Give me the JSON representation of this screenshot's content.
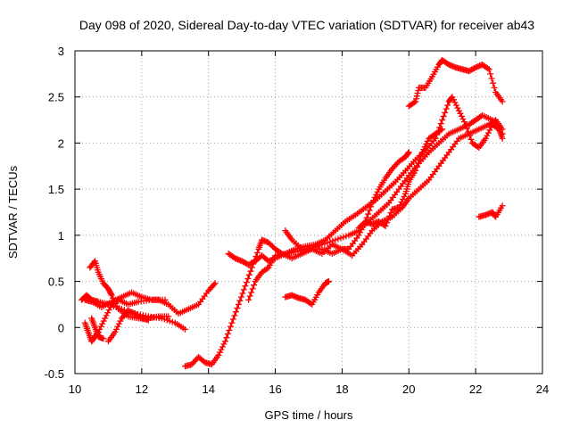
{
  "chart_data": {
    "type": "scatter",
    "title": "Day 098 of 2020, Sidereal Day-to-day VTEC variation (SDTVAR) for receiver ab43",
    "xlabel": "GPS time / hours",
    "ylabel": "SDTVAR / TECUs",
    "xlim": [
      10,
      24
    ],
    "ylim": [
      -0.5,
      3
    ],
    "xticks": [
      10,
      12,
      14,
      16,
      18,
      20,
      22,
      24
    ],
    "yticks": [
      -0.5,
      0,
      0.5,
      1,
      1.5,
      2,
      2.5,
      3
    ],
    "xtick_labels": [
      "10",
      "12",
      "14",
      "16",
      "18",
      "20",
      "22",
      "24"
    ],
    "ytick_labels": [
      "-0.5",
      "0",
      "0.5",
      "1",
      "1.5",
      "2",
      "2.5",
      "3"
    ],
    "grid": true,
    "marker": "+",
    "color": "#ff0000",
    "series": [
      {
        "name": "s1",
        "points": [
          [
            10.3,
            0.3
          ],
          [
            10.5,
            0.28
          ],
          [
            10.8,
            0.22
          ],
          [
            11.1,
            0.28
          ],
          [
            11.4,
            0.33
          ],
          [
            11.7,
            0.38
          ],
          [
            12.0,
            0.33
          ],
          [
            12.3,
            0.3
          ],
          [
            12.5,
            0.3
          ],
          [
            12.8,
            0.25
          ],
          [
            13.1,
            0.15
          ],
          [
            13.4,
            0.2
          ],
          [
            13.7,
            0.25
          ],
          [
            14.0,
            0.4
          ],
          [
            14.2,
            0.48
          ]
        ]
      },
      {
        "name": "s2",
        "points": [
          [
            10.45,
            0.65
          ],
          [
            10.6,
            0.72
          ],
          [
            10.7,
            0.6
          ],
          [
            10.85,
            0.48
          ],
          [
            11.0,
            0.42
          ],
          [
            11.1,
            0.35
          ],
          [
            11.3,
            0.2
          ],
          [
            11.6,
            0.12
          ],
          [
            11.9,
            0.1
          ],
          [
            12.2,
            0.1
          ],
          [
            12.5,
            0.12
          ],
          [
            12.8,
            0.12
          ]
        ]
      },
      {
        "name": "s3",
        "points": [
          [
            10.2,
            0.3
          ],
          [
            10.35,
            0.35
          ],
          [
            10.5,
            0.3
          ],
          [
            10.7,
            0.28
          ],
          [
            11.0,
            0.25
          ],
          [
            11.4,
            0.2
          ],
          [
            11.8,
            0.15
          ],
          [
            12.2,
            0.12
          ],
          [
            12.6,
            0.1
          ],
          [
            13.0,
            0.05
          ],
          [
            13.3,
            -0.02
          ]
        ]
      },
      {
        "name": "s4",
        "points": [
          [
            10.3,
            0.05
          ],
          [
            10.4,
            -0.05
          ],
          [
            10.5,
            -0.15
          ],
          [
            10.6,
            -0.1
          ],
          [
            10.7,
            -0.05
          ],
          [
            10.9,
            0.1
          ],
          [
            11.1,
            0.25
          ],
          [
            11.3,
            0.3
          ],
          [
            11.6,
            0.25
          ],
          [
            11.9,
            0.28
          ],
          [
            12.3,
            0.3
          ],
          [
            12.7,
            0.3
          ]
        ]
      },
      {
        "name": "s5",
        "points": [
          [
            10.5,
            0.1
          ],
          [
            10.6,
            0.0
          ],
          [
            10.7,
            -0.1
          ],
          [
            10.85,
            -0.12
          ]
        ]
      },
      {
        "name": "s6",
        "points": [
          [
            11.0,
            -0.15
          ],
          [
            11.2,
            -0.05
          ],
          [
            11.4,
            0.1
          ],
          [
            11.6,
            0.18
          ],
          [
            11.8,
            0.15
          ],
          [
            12.0,
            0.1
          ],
          [
            12.2,
            0.08
          ]
        ]
      },
      {
        "name": "s7",
        "points": [
          [
            13.3,
            -0.42
          ],
          [
            13.5,
            -0.4
          ],
          [
            13.7,
            -0.32
          ],
          [
            13.9,
            -0.38
          ],
          [
            14.1,
            -0.4
          ],
          [
            14.3,
            -0.3
          ],
          [
            14.5,
            -0.15
          ],
          [
            14.7,
            0.05
          ],
          [
            14.9,
            0.25
          ],
          [
            15.1,
            0.45
          ],
          [
            15.3,
            0.65
          ],
          [
            15.5,
            0.85
          ],
          [
            15.6,
            0.95
          ],
          [
            15.8,
            0.92
          ],
          [
            16.0,
            0.85
          ],
          [
            16.2,
            0.8
          ],
          [
            16.5,
            0.75
          ],
          [
            16.8,
            0.8
          ],
          [
            17.1,
            0.85
          ],
          [
            17.4,
            0.85
          ],
          [
            17.7,
            0.8
          ],
          [
            18.0,
            0.85
          ],
          [
            18.2,
            0.85
          ],
          [
            18.5,
            1.0
          ],
          [
            18.7,
            1.15
          ],
          [
            18.9,
            1.35
          ],
          [
            19.1,
            1.5
          ],
          [
            19.3,
            1.62
          ],
          [
            19.5,
            1.72
          ],
          [
            19.7,
            1.8
          ],
          [
            19.9,
            1.85
          ],
          [
            20.0,
            1.9
          ]
        ]
      },
      {
        "name": "s8",
        "points": [
          [
            14.6,
            0.8
          ],
          [
            14.8,
            0.75
          ],
          [
            15.0,
            0.72
          ],
          [
            15.2,
            0.68
          ],
          [
            15.4,
            0.72
          ],
          [
            15.6,
            0.78
          ],
          [
            15.8,
            0.72
          ],
          [
            16.0,
            0.75
          ],
          [
            16.3,
            0.8
          ],
          [
            16.6,
            0.85
          ],
          [
            16.9,
            0.88
          ],
          [
            17.2,
            0.9
          ],
          [
            17.5,
            0.95
          ],
          [
            17.8,
            1.05
          ],
          [
            18.1,
            1.15
          ],
          [
            18.4,
            1.22
          ],
          [
            18.7,
            1.3
          ],
          [
            19.0,
            1.38
          ],
          [
            19.3,
            1.48
          ],
          [
            19.6,
            1.58
          ],
          [
            19.9,
            1.7
          ],
          [
            20.2,
            1.82
          ],
          [
            20.5,
            1.92
          ],
          [
            20.8,
            2.05
          ],
          [
            21.0,
            2.25
          ],
          [
            21.2,
            2.45
          ],
          [
            21.3,
            2.5
          ],
          [
            21.5,
            2.35
          ],
          [
            21.7,
            2.2
          ],
          [
            21.9,
            2.0
          ],
          [
            22.1,
            1.95
          ],
          [
            22.3,
            2.05
          ],
          [
            22.5,
            2.2
          ],
          [
            22.7,
            2.15
          ],
          [
            22.8,
            2.05
          ]
        ]
      },
      {
        "name": "s9",
        "points": [
          [
            15.2,
            0.3
          ],
          [
            15.4,
            0.5
          ],
          [
            15.6,
            0.6
          ],
          [
            15.8,
            0.65
          ],
          [
            16.0,
            0.78
          ],
          [
            16.3,
            0.8
          ],
          [
            16.6,
            0.82
          ],
          [
            17.0,
            0.85
          ],
          [
            17.4,
            0.9
          ],
          [
            17.8,
            0.95
          ],
          [
            18.2,
            1.0
          ],
          [
            18.5,
            1.05
          ],
          [
            18.8,
            1.15
          ],
          [
            19.1,
            1.25
          ],
          [
            19.4,
            1.35
          ],
          [
            19.7,
            1.5
          ],
          [
            20.0,
            1.65
          ],
          [
            20.3,
            1.78
          ],
          [
            20.6,
            1.9
          ],
          [
            20.9,
            2.0
          ],
          [
            21.2,
            2.1
          ],
          [
            21.5,
            2.15
          ],
          [
            21.8,
            2.2
          ],
          [
            22.0,
            2.25
          ],
          [
            22.2,
            2.3
          ],
          [
            22.5,
            2.25
          ],
          [
            22.8,
            2.1
          ]
        ]
      },
      {
        "name": "s10",
        "points": [
          [
            16.3,
            1.05
          ],
          [
            16.5,
            0.95
          ],
          [
            16.8,
            0.85
          ],
          [
            17.1,
            0.85
          ],
          [
            17.4,
            0.8
          ],
          [
            17.7,
            0.9
          ],
          [
            18.0,
            0.85
          ],
          [
            18.3,
            0.78
          ],
          [
            18.6,
            0.9
          ],
          [
            18.9,
            1.05
          ],
          [
            19.2,
            1.15
          ],
          [
            19.5,
            1.2
          ],
          [
            19.8,
            1.3
          ],
          [
            20.0,
            1.4
          ],
          [
            20.3,
            1.5
          ],
          [
            20.6,
            1.6
          ],
          [
            20.9,
            1.75
          ],
          [
            21.2,
            1.9
          ],
          [
            21.5,
            2.05
          ],
          [
            21.8,
            2.1
          ],
          [
            22.1,
            2.15
          ],
          [
            22.4,
            2.2
          ],
          [
            22.6,
            2.25
          ],
          [
            22.8,
            2.15
          ]
        ]
      },
      {
        "name": "s11",
        "points": [
          [
            18.5,
            1.08
          ],
          [
            18.7,
            1.15
          ],
          [
            18.9,
            1.12
          ],
          [
            19.1,
            1.15
          ],
          [
            19.3,
            1.1
          ],
          [
            19.5,
            1.28
          ],
          [
            19.7,
            1.3
          ],
          [
            19.9,
            1.45
          ],
          [
            20.0,
            1.58
          ],
          [
            20.2,
            1.7
          ],
          [
            20.4,
            1.9
          ],
          [
            20.6,
            2.05
          ],
          [
            20.8,
            2.1
          ],
          [
            21.0,
            2.15
          ]
        ]
      },
      {
        "name": "s12",
        "points": [
          [
            20.0,
            2.4
          ],
          [
            20.2,
            2.45
          ],
          [
            20.3,
            2.6
          ],
          [
            20.5,
            2.6
          ],
          [
            20.7,
            2.72
          ],
          [
            20.9,
            2.85
          ],
          [
            21.0,
            2.9
          ],
          [
            21.2,
            2.85
          ],
          [
            21.4,
            2.82
          ],
          [
            21.6,
            2.8
          ],
          [
            21.8,
            2.78
          ],
          [
            22.0,
            2.82
          ],
          [
            22.2,
            2.85
          ],
          [
            22.4,
            2.8
          ],
          [
            22.6,
            2.55
          ],
          [
            22.8,
            2.45
          ]
        ]
      },
      {
        "name": "s13",
        "points": [
          [
            16.3,
            0.33
          ],
          [
            16.5,
            0.35
          ],
          [
            16.7,
            0.32
          ],
          [
            16.9,
            0.3
          ],
          [
            17.1,
            0.25
          ],
          [
            17.3,
            0.38
          ],
          [
            17.5,
            0.48
          ],
          [
            17.6,
            0.5
          ]
        ]
      },
      {
        "name": "s14",
        "points": [
          [
            22.1,
            1.2
          ],
          [
            22.3,
            1.22
          ],
          [
            22.5,
            1.25
          ],
          [
            22.6,
            1.2
          ],
          [
            22.8,
            1.32
          ]
        ]
      }
    ]
  }
}
